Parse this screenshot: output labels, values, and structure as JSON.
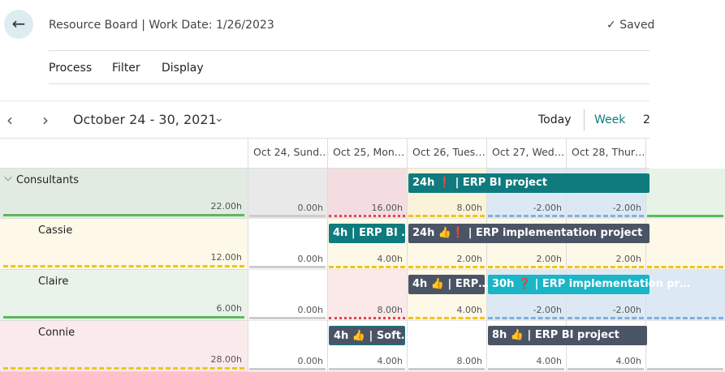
{
  "header": {
    "title": "Resource Board | Work Date: 1/26/2023",
    "saved": "Saved"
  },
  "menu": [
    "Process",
    "Filter",
    "Display"
  ],
  "nav": {
    "period": "October 24 - 30, 2021",
    "today": "Today",
    "week": "Week",
    "next_view": "2"
  },
  "grid": {
    "columns": [
      "Oct 24, Sund…",
      "Oct 25, Mon…",
      "Oct 26, Tues…",
      "Oct 27, Wed…",
      "Oct 28, Thur…"
    ],
    "rows": [
      {
        "name": "Consultants",
        "total": "22.00h",
        "cells": [
          "0.00h",
          "16.00h",
          "8.00h",
          "-2.00h",
          "-2.00h"
        ],
        "events": [
          "24h ❗ | ERP BI project"
        ]
      },
      {
        "name": "Cassie",
        "total": "12.00h",
        "cells": [
          "0.00h",
          "4.00h",
          "2.00h",
          "2.00h",
          "2.00h"
        ],
        "events": [
          "4h | ERP BI …",
          "24h 👍❗ | ERP implementation project"
        ]
      },
      {
        "name": "Claire",
        "total": "6.00h",
        "cells": [
          "0.00h",
          "8.00h",
          "4.00h",
          "-2.00h",
          "-2.00h"
        ],
        "events": [
          "4h 👍 | ERP…",
          "30h ❓ | ERP implementation pr…"
        ]
      },
      {
        "name": "Connie",
        "total": "28.00h",
        "cells": [
          "0.00h",
          "4.00h",
          "8.00h",
          "4.00h",
          "4.00h"
        ],
        "events": [
          "4h 👍 | Soft…",
          "8h 👍 | ERP BI project"
        ]
      }
    ]
  }
}
